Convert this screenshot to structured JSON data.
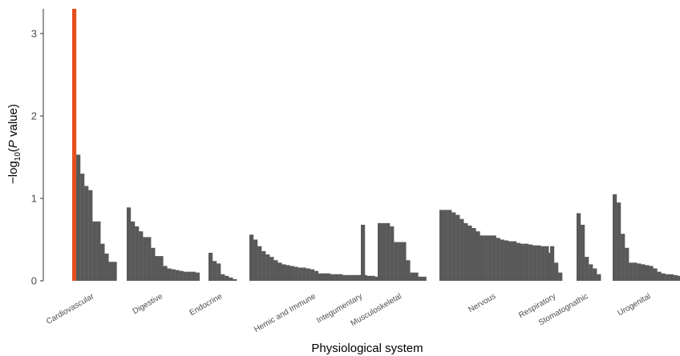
{
  "chart_data": {
    "type": "bar",
    "title": "",
    "xlabel": "Physiological system",
    "ylabel": "−log10(P value)",
    "ylabel_parts": {
      "prefix": "−log",
      "sub": "10",
      "open": "(",
      "italic": "P",
      "rest": " value)"
    },
    "ylim": [
      0,
      3.3
    ],
    "yticks": [
      0,
      1,
      2,
      3
    ],
    "grid": false,
    "legend": "none",
    "colors": {
      "bar": "#595959",
      "highlight": "#E6501E",
      "text": "#4d4d4d"
    },
    "groups": [
      {
        "label": "Cardiovascular",
        "highlight_index": 0,
        "values": [
          3.3,
          1.53,
          1.3,
          1.15,
          1.1,
          0.72,
          0.72,
          0.45,
          0.33,
          0.23,
          0.23
        ]
      },
      {
        "label": "Digestive",
        "values": [
          0.89,
          0.72,
          0.66,
          0.6,
          0.53,
          0.53,
          0.4,
          0.3,
          0.3,
          0.18,
          0.15,
          0.14,
          0.13,
          0.12,
          0.11,
          0.11,
          0.11,
          0.1
        ]
      },
      {
        "label": "Endocrine",
        "values": [
          0.34,
          0.24,
          0.21,
          0.08,
          0.06,
          0.04,
          0.02
        ]
      },
      {
        "label": "Hemic and Immune",
        "values": [
          0.56,
          0.5,
          0.42,
          0.36,
          0.32,
          0.29,
          0.25,
          0.22,
          0.2,
          0.19,
          0.18,
          0.17,
          0.16,
          0.16,
          0.15,
          0.14,
          0.12,
          0.09,
          0.09,
          0.09,
          0.08,
          0.08,
          0.08,
          0.07,
          0.07,
          0.07,
          0.07,
          0.07,
          0.07,
          0.06,
          0.06,
          0.05,
          0.04
        ]
      },
      {
        "label": "Integumentary",
        "values": [
          0.68
        ]
      },
      {
        "label": "Musculoskeletal",
        "values": [
          0.7,
          0.7,
          0.7,
          0.66,
          0.47,
          0.47,
          0.47,
          0.25,
          0.1,
          0.1,
          0.05,
          0.05
        ]
      },
      {
        "label": "Nervous",
        "values": [
          0.86,
          0.86,
          0.86,
          0.83,
          0.8,
          0.75,
          0.7,
          0.67,
          0.64,
          0.6,
          0.55,
          0.55,
          0.55,
          0.55,
          0.52,
          0.5,
          0.49,
          0.48,
          0.48,
          0.46,
          0.45,
          0.45,
          0.44,
          0.43,
          0.43,
          0.42,
          0.42,
          0.34
        ]
      },
      {
        "label": "Respiratory",
        "values": [
          0.42,
          0.22,
          0.1
        ]
      },
      {
        "label": "Stomatognathic",
        "values": [
          0.82,
          0.68,
          0.29,
          0.2,
          0.15,
          0.08
        ]
      },
      {
        "label": "Urogenital",
        "values": [
          1.05,
          0.95,
          0.57,
          0.4,
          0.22,
          0.22,
          0.21,
          0.2,
          0.19,
          0.18,
          0.15,
          0.11,
          0.09,
          0.08,
          0.08,
          0.07,
          0.06,
          0.03,
          0.02
        ]
      }
    ]
  }
}
